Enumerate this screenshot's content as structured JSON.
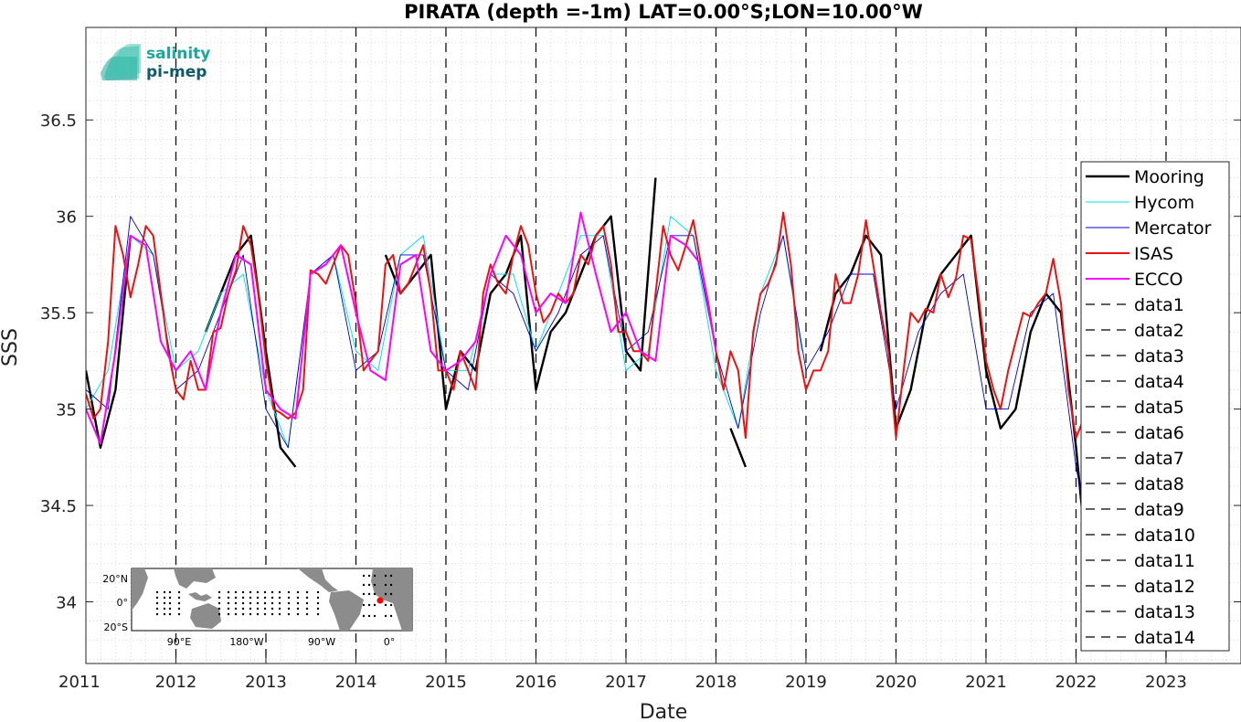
{
  "chart_data": {
    "type": "line",
    "title": "PIRATA (depth =-1m) LAT=0.00°S;LON=10.00°W",
    "xlabel": "Date",
    "ylabel": "SSS",
    "xlim": [
      "2011-01-01",
      "2023-11-01"
    ],
    "ylim": [
      33.68,
      36.98
    ],
    "x_ticks": [
      "2011",
      "2012",
      "2013",
      "2014",
      "2015",
      "2016",
      "2017",
      "2018",
      "2019",
      "2020",
      "2021",
      "2022",
      "2023"
    ],
    "y_ticks": [
      34,
      34.5,
      35,
      35.5,
      36,
      36.5
    ],
    "grid": true,
    "legend_position": "right",
    "series": [
      {
        "name": "Mooring",
        "color": "#000000",
        "x": [
          "2011-01-01",
          "2011-03-01",
          "2011-05-01",
          "2011-07-01",
          "2011-09-01",
          "2011-11-01",
          "2012-01-01",
          "2012-03-01",
          "2012-05-01",
          "2012-07-01",
          "2012-09-01",
          "2012-11-01",
          "2013-01-01",
          "2013-03-01",
          "2013-05-01",
          "2013-07-01",
          "2013-09-01",
          "2013-11-01",
          "2014-01-01",
          "2014-03-01",
          "2014-05-01",
          "2014-07-01",
          "2014-09-01",
          "2014-11-01",
          "2015-01-01",
          "2015-03-01",
          "2015-05-01",
          "2015-07-01",
          "2015-09-01",
          "2015-11-01",
          "2016-01-01",
          "2016-03-01",
          "2016-05-01",
          "2016-07-01",
          "2016-09-01",
          "2016-11-01",
          "2017-01-01",
          "2017-03-01",
          "2017-05-01",
          "2017-07-01",
          "2017-09-01",
          "2017-11-01",
          "2018-01-01",
          "2018-03-01",
          "2018-05-01",
          "2018-07-01",
          "2018-09-01",
          "2018-11-01",
          "2019-01-01",
          "2019-03-01",
          "2019-05-01",
          "2019-07-01",
          "2019-09-01",
          "2019-11-01",
          "2020-01-01",
          "2020-03-01",
          "2020-05-01",
          "2020-07-01",
          "2020-09-01",
          "2020-11-01",
          "2021-01-01",
          "2021-03-01",
          "2021-05-01",
          "2021-07-01",
          "2021-09-01",
          "2021-11-01",
          "2022-01-01",
          "2022-02-15"
        ],
        "values": [
          35.2,
          34.8,
          35.1,
          35.9,
          null,
          null,
          null,
          null,
          35.4,
          35.6,
          35.8,
          35.9,
          35.3,
          34.8,
          34.7,
          null,
          null,
          null,
          null,
          null,
          35.8,
          35.6,
          35.7,
          35.8,
          35.0,
          35.3,
          35.2,
          35.6,
          35.7,
          35.9,
          35.1,
          35.4,
          35.5,
          35.7,
          35.9,
          36.0,
          35.3,
          35.2,
          36.2,
          null,
          null,
          null,
          null,
          34.9,
          34.7,
          null,
          null,
          null,
          null,
          35.3,
          35.6,
          35.7,
          35.9,
          35.8,
          34.9,
          35.1,
          35.5,
          35.7,
          35.8,
          35.9,
          35.2,
          34.9,
          35.0,
          35.4,
          35.6,
          35.5,
          34.8,
          34.2
        ]
      },
      {
        "name": "Hycom",
        "color": "#00e5ee",
        "x": [
          "2011-01-01",
          "2011-04-01",
          "2011-07-01",
          "2011-10-01",
          "2012-01-01",
          "2012-04-01",
          "2012-07-01",
          "2012-10-01",
          "2013-01-01",
          "2013-04-01",
          "2013-07-01",
          "2013-10-01",
          "2014-01-01",
          "2014-04-01",
          "2014-07-01",
          "2014-10-01",
          "2015-01-01",
          "2015-04-01",
          "2015-07-01",
          "2015-10-01",
          "2016-01-01",
          "2016-04-01",
          "2016-07-01",
          "2016-10-01",
          "2017-01-01",
          "2017-04-01",
          "2017-07-01",
          "2017-10-01",
          "2018-01-01",
          "2018-04-01",
          "2018-07-01",
          "2018-10-01",
          "2018-12-15"
        ],
        "values": [
          35.0,
          35.2,
          35.9,
          35.8,
          35.2,
          35.3,
          35.6,
          35.7,
          35.1,
          34.8,
          35.7,
          35.8,
          35.3,
          35.2,
          35.8,
          35.9,
          35.2,
          35.2,
          35.7,
          35.7,
          35.3,
          35.6,
          35.9,
          35.9,
          35.2,
          35.3,
          36.0,
          35.9,
          35.2,
          34.9,
          35.6,
          35.9,
          35.3
        ]
      },
      {
        "name": "Mercator",
        "color": "#0000cd",
        "x": [
          "2011-01-01",
          "2011-04-01",
          "2011-07-01",
          "2011-10-01",
          "2012-01-01",
          "2012-04-01",
          "2012-07-01",
          "2012-10-01",
          "2013-01-01",
          "2013-04-01",
          "2013-07-01",
          "2013-10-01",
          "2014-01-01",
          "2014-04-01",
          "2014-07-01",
          "2014-10-01",
          "2015-01-01",
          "2015-04-01",
          "2015-07-01",
          "2015-10-01",
          "2016-01-01",
          "2016-04-01",
          "2016-07-01",
          "2016-10-01",
          "2017-01-01",
          "2017-04-01",
          "2017-07-01",
          "2017-10-01",
          "2018-01-01",
          "2018-04-01",
          "2018-07-01",
          "2018-10-01",
          "2019-01-01",
          "2019-04-01",
          "2019-07-01",
          "2019-10-01",
          "2020-01-01",
          "2020-04-01",
          "2020-07-01",
          "2020-10-01",
          "2021-01-01",
          "2021-04-01",
          "2021-07-01",
          "2021-10-01",
          "2022-01-01",
          "2022-03-01"
        ],
        "values": [
          35.1,
          35.0,
          36.0,
          35.8,
          35.1,
          35.2,
          35.5,
          35.8,
          35.0,
          34.8,
          35.7,
          35.8,
          35.2,
          35.3,
          35.8,
          35.8,
          35.2,
          35.1,
          35.7,
          35.6,
          35.3,
          35.5,
          35.8,
          35.9,
          35.3,
          35.4,
          35.9,
          35.9,
          35.3,
          34.9,
          35.5,
          35.9,
          35.2,
          35.4,
          35.7,
          35.7,
          35.0,
          35.4,
          35.6,
          35.7,
          35.0,
          35.0,
          35.5,
          35.6,
          34.7,
          34.3
        ]
      },
      {
        "name": "ISAS",
        "color": "#ee1111",
        "x": [
          "2011-01-01",
          "2011-02-01",
          "2011-03-01",
          "2011-04-01",
          "2011-05-01",
          "2011-06-01",
          "2011-07-01",
          "2011-08-01",
          "2011-09-01",
          "2011-10-01",
          "2011-11-01",
          "2011-12-01",
          "2012-01-01",
          "2012-02-01",
          "2012-03-01",
          "2012-04-01",
          "2012-05-01",
          "2012-06-01",
          "2012-07-01",
          "2012-08-01",
          "2012-09-01",
          "2012-10-01",
          "2012-11-01",
          "2012-12-01",
          "2013-01-01",
          "2013-02-01",
          "2013-03-01",
          "2013-04-01",
          "2013-05-01",
          "2013-06-01",
          "2013-07-01",
          "2013-08-01",
          "2013-09-01",
          "2013-10-01",
          "2013-11-01",
          "2013-12-01",
          "2014-01-01",
          "2014-02-01",
          "2014-03-01",
          "2014-04-01",
          "2014-05-01",
          "2014-06-01",
          "2014-07-01",
          "2014-08-01",
          "2014-09-01",
          "2014-10-01",
          "2014-11-01",
          "2014-12-01",
          "2015-01-01",
          "2015-02-01",
          "2015-03-01",
          "2015-04-01",
          "2015-05-01",
          "2015-06-01",
          "2015-07-01",
          "2015-08-01",
          "2015-09-01",
          "2015-10-01",
          "2015-11-01",
          "2015-12-01",
          "2016-01-01",
          "2016-02-01",
          "2016-03-01",
          "2016-04-01",
          "2016-05-01",
          "2016-06-01",
          "2016-07-01",
          "2016-08-01",
          "2016-09-01",
          "2016-10-01",
          "2016-11-01",
          "2016-12-01",
          "2017-01-01",
          "2017-02-01",
          "2017-03-01",
          "2017-04-01",
          "2017-05-01",
          "2017-06-01",
          "2017-07-01",
          "2017-08-01",
          "2017-09-01",
          "2017-10-01",
          "2017-11-01",
          "2017-12-01",
          "2018-01-01",
          "2018-02-01",
          "2018-03-01",
          "2018-04-01",
          "2018-05-01",
          "2018-06-01",
          "2018-07-01",
          "2018-08-01",
          "2018-09-01",
          "2018-10-01",
          "2018-11-01",
          "2018-12-01",
          "2019-01-01",
          "2019-02-01",
          "2019-03-01",
          "2019-04-01",
          "2019-05-01",
          "2019-06-01",
          "2019-07-01",
          "2019-08-01",
          "2019-09-01",
          "2019-10-01",
          "2019-11-01",
          "2019-12-01",
          "2020-01-01",
          "2020-02-01",
          "2020-03-01",
          "2020-04-01",
          "2020-05-01",
          "2020-06-01",
          "2020-07-01",
          "2020-08-01",
          "2020-09-01",
          "2020-10-01",
          "2020-11-01",
          "2020-12-01",
          "2021-01-01",
          "2021-02-01",
          "2021-03-01",
          "2021-04-01",
          "2021-05-01",
          "2021-06-01",
          "2021-07-01",
          "2021-08-01",
          "2021-09-01",
          "2021-10-01",
          "2021-11-01",
          "2021-12-01",
          "2022-01-01",
          "2022-02-01"
        ],
        "values": [
          35.08,
          34.95,
          35.0,
          35.35,
          35.95,
          35.8,
          35.58,
          35.75,
          35.95,
          35.9,
          35.6,
          35.3,
          35.1,
          35.05,
          35.25,
          35.1,
          35.1,
          35.4,
          35.42,
          35.6,
          35.72,
          35.95,
          35.85,
          35.6,
          35.25,
          35.0,
          34.98,
          34.95,
          34.98,
          35.1,
          35.72,
          35.7,
          35.65,
          35.75,
          35.85,
          35.8,
          35.55,
          35.2,
          35.25,
          35.3,
          35.75,
          35.8,
          35.6,
          35.65,
          35.75,
          35.85,
          35.6,
          35.2,
          35.2,
          35.1,
          35.3,
          35.2,
          35.1,
          35.6,
          35.75,
          35.65,
          35.6,
          35.8,
          35.95,
          35.85,
          35.6,
          35.45,
          35.5,
          35.6,
          35.55,
          35.6,
          35.8,
          35.75,
          35.9,
          35.95,
          35.75,
          35.4,
          35.4,
          35.3,
          35.3,
          35.25,
          35.6,
          35.95,
          35.8,
          35.72,
          35.85,
          35.98,
          35.75,
          35.55,
          35.3,
          35.1,
          35.3,
          35.2,
          34.85,
          35.4,
          35.6,
          35.65,
          35.75,
          36.02,
          35.75,
          35.3,
          35.1,
          35.2,
          35.2,
          35.3,
          35.7,
          35.55,
          35.55,
          35.7,
          35.98,
          35.75,
          35.5,
          35.3,
          34.85,
          35.2,
          35.5,
          35.45,
          35.52,
          35.5,
          35.7,
          35.58,
          35.68,
          35.9,
          35.88,
          35.6,
          35.25,
          35.1,
          35.0,
          35.2,
          35.35,
          35.5,
          35.48,
          35.55,
          35.6,
          35.78,
          35.55,
          35.1,
          34.85,
          34.95
        ]
      },
      {
        "name": "ECCO",
        "color": "#ff00ff",
        "x": [
          "2011-01-01",
          "2011-03-01",
          "2011-05-01",
          "2011-07-01",
          "2011-09-01",
          "2011-11-01",
          "2012-01-01",
          "2012-03-01",
          "2012-05-01",
          "2012-07-01",
          "2012-09-01",
          "2012-11-01",
          "2013-01-01",
          "2013-03-01",
          "2013-05-01",
          "2013-07-01",
          "2013-09-01",
          "2013-11-01",
          "2014-01-01",
          "2014-03-01",
          "2014-05-01",
          "2014-07-01",
          "2014-09-01",
          "2014-11-01",
          "2015-01-01",
          "2015-03-01",
          "2015-05-01",
          "2015-07-01",
          "2015-09-01",
          "2015-11-01",
          "2016-01-01",
          "2016-03-01",
          "2016-05-01",
          "2016-07-01",
          "2016-09-01",
          "2016-11-01",
          "2017-01-01",
          "2017-03-01",
          "2017-05-01",
          "2017-07-01",
          "2017-09-01",
          "2017-11-01",
          "2018-01-01"
        ],
        "values": [
          35.0,
          34.82,
          35.3,
          35.9,
          35.85,
          35.35,
          35.2,
          35.3,
          35.1,
          35.5,
          35.8,
          35.75,
          35.1,
          35.0,
          34.95,
          35.7,
          35.75,
          35.85,
          35.5,
          35.2,
          35.15,
          35.75,
          35.8,
          35.3,
          35.2,
          35.25,
          35.35,
          35.7,
          35.9,
          35.8,
          35.5,
          35.6,
          35.55,
          36.02,
          35.7,
          35.4,
          35.5,
          35.3,
          35.25,
          35.9,
          35.85,
          35.75,
          35.3
        ]
      }
    ],
    "legend_entries": [
      "Mooring",
      "Hycom",
      "Mercator",
      "ISAS",
      "ECCO",
      "data1",
      "data2",
      "data3",
      "data4",
      "data5",
      "data6",
      "data7",
      "data8",
      "data9",
      "data10",
      "data11",
      "data12",
      "data13",
      "data14"
    ],
    "dashed_lines_at": [
      "2012-01-01",
      "2013-01-01",
      "2014-01-01",
      "2015-01-01",
      "2016-01-01",
      "2017-01-01",
      "2018-01-01",
      "2019-01-01",
      "2020-01-01",
      "2021-01-01",
      "2022-01-01",
      "2023-01-01",
      "2011-01-01",
      "2024-01-01"
    ]
  },
  "logo": {
    "line1": "salinity",
    "line2": "pi-mep",
    "color1": "#1aa89a",
    "color2": "#0f5a68"
  },
  "inset_map": {
    "lat_labels": [
      "20°N",
      "0°",
      "20°S"
    ],
    "lon_labels": [
      "90°E",
      "180°W",
      "90°W",
      "0°"
    ],
    "land_color": "#8c8c8c",
    "marker_color": "#ff0000"
  }
}
